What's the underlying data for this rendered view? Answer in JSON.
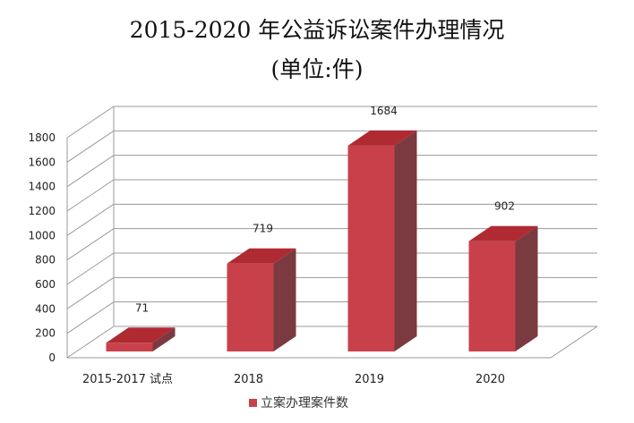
{
  "chart_data": {
    "type": "bar",
    "title": "2015-2020 年公益诉讼案件办理情况",
    "subtitle": "(单位:件)",
    "categories": [
      "2015-2017 试点",
      "2018",
      "2019",
      "2020"
    ],
    "series": [
      {
        "name": "立案办理案件数",
        "values": [
          71,
          719,
          1684,
          902
        ]
      }
    ],
    "ylim": [
      0,
      1800
    ],
    "yticks": [
      0,
      200,
      400,
      600,
      800,
      1000,
      1200,
      1400,
      1600,
      1800
    ],
    "grid": true,
    "legend": "bottom",
    "style": "3d",
    "colors": {
      "front": "#c8414a",
      "top": "#b02a32",
      "side": "#7a3a3f",
      "grid": "#9a9a9a"
    }
  }
}
